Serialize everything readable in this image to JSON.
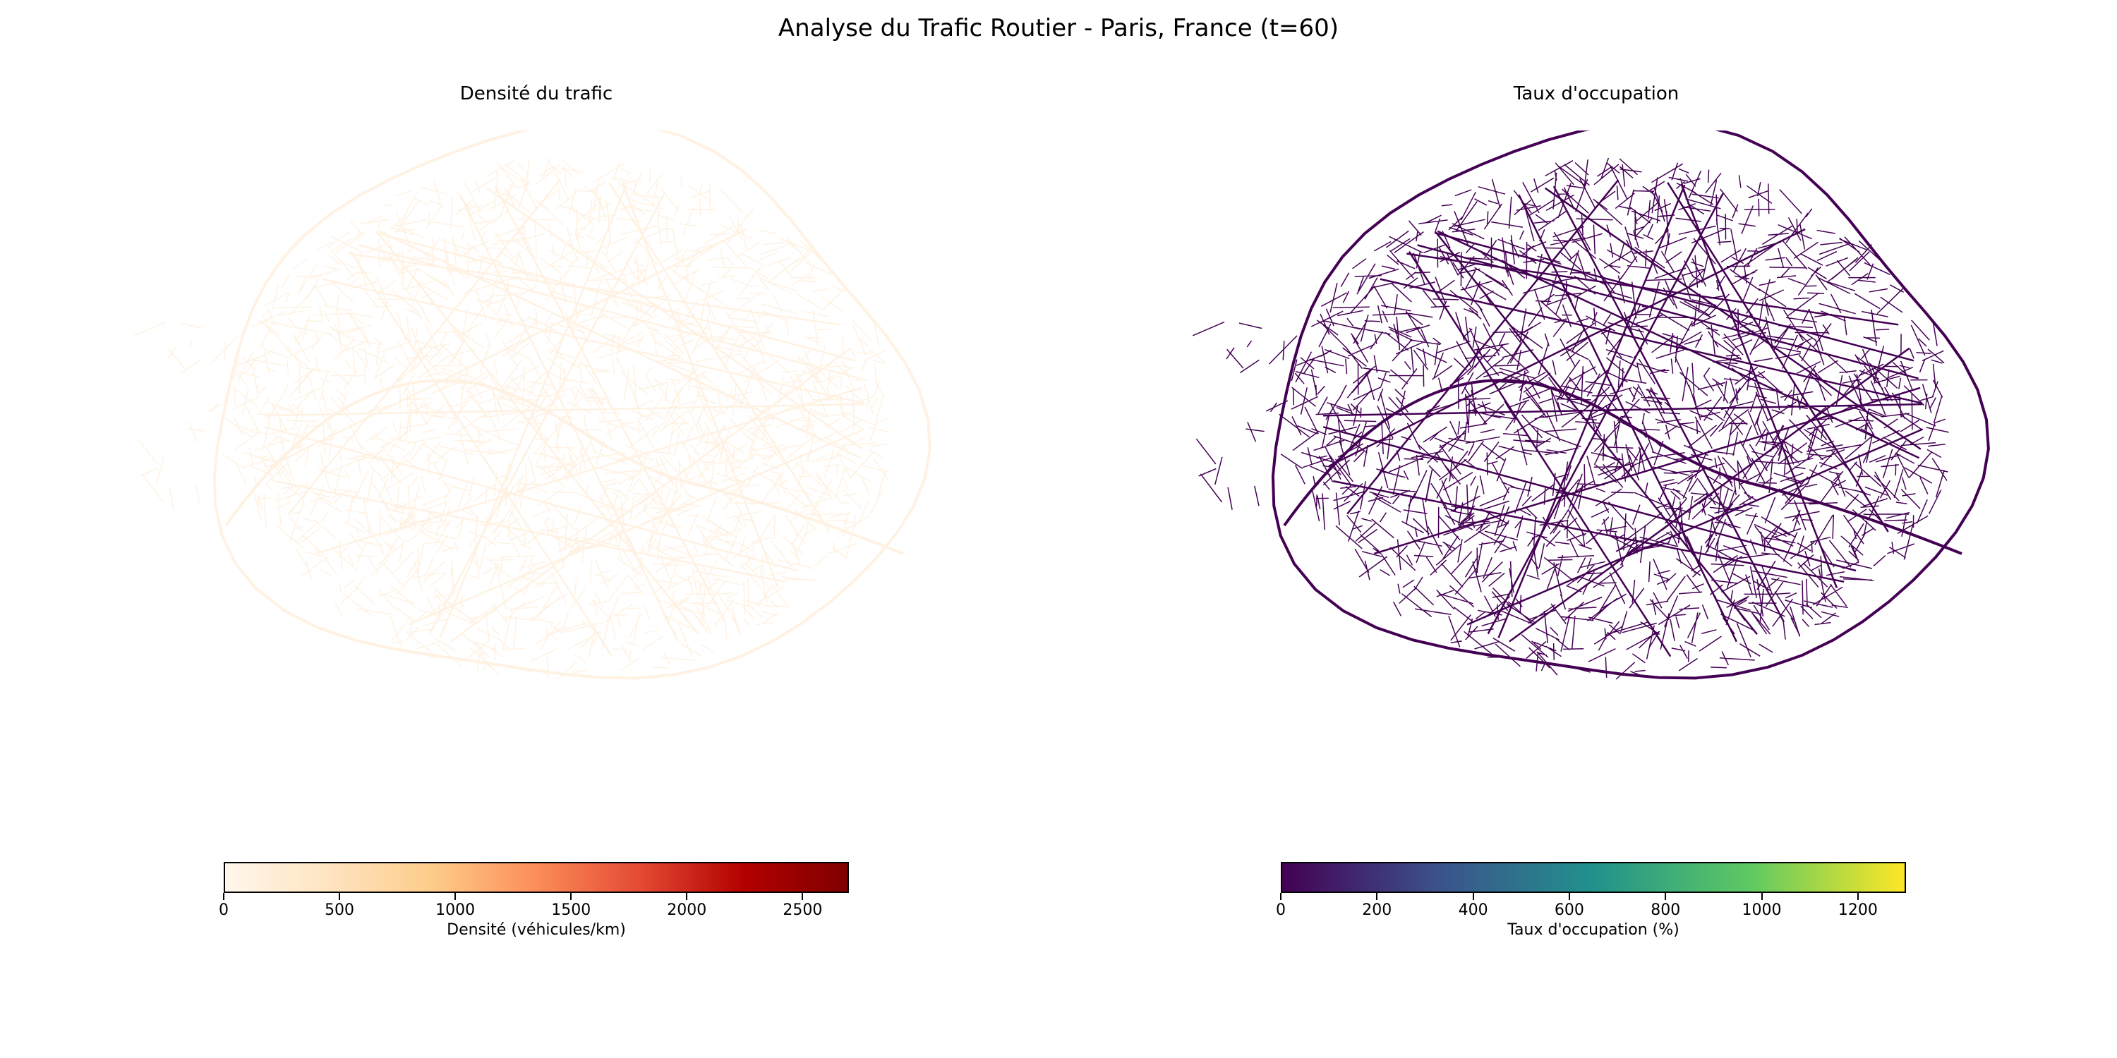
{
  "figure": {
    "title": "Analyse du Trafic Routier - Paris, France (t=60)"
  },
  "panels": [
    {
      "title": "Densité du trafic",
      "colormap": "YlOrRd",
      "network_color": "#fff1e0",
      "colorbar": {
        "label": "Densité (véhicules/km)",
        "vmin": 0,
        "vmax": 2700,
        "ticks": [
          "0",
          "500",
          "1000",
          "1500",
          "2000",
          "2500"
        ],
        "gradient": [
          "#fff7ec",
          "#fee4c0",
          "#fdcc8a",
          "#fc8d59",
          "#e34a33",
          "#b30000",
          "#7f0000"
        ]
      }
    },
    {
      "title": "Taux d'occupation",
      "colormap": "viridis",
      "network_color": "#440154",
      "colorbar": {
        "label": "Taux d'occupation (%)",
        "vmin": 0,
        "vmax": 1300,
        "ticks": [
          "0",
          "200",
          "400",
          "600",
          "800",
          "1000",
          "1200"
        ],
        "gradient": [
          "#440154",
          "#3b528b",
          "#21918c",
          "#5ec962",
          "#fde725"
        ]
      }
    }
  ]
}
